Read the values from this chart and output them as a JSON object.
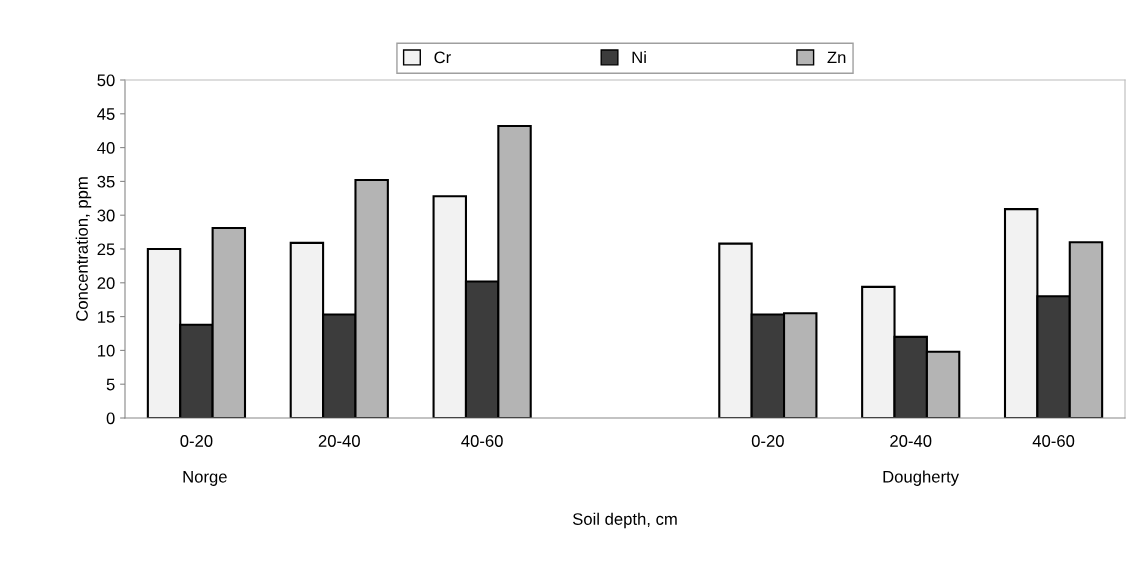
{
  "chart_data": {
    "type": "bar",
    "categories": [
      "0-20",
      "20-40",
      "40-60",
      null,
      "0-20",
      "20-40",
      "40-60"
    ],
    "series": [
      {
        "name": "Cr",
        "color": "#f2f2f2",
        "values": [
          25,
          25.9,
          32.8,
          null,
          25.8,
          19.4,
          30.9
        ]
      },
      {
        "name": "Ni",
        "color": "#3c3c3c",
        "values": [
          13.8,
          15.3,
          20.2,
          null,
          15.3,
          12.0,
          18.0
        ]
      },
      {
        "name": "Zn",
        "color": "#b4b4b4",
        "values": [
          28.1,
          35.2,
          43.2,
          null,
          15.5,
          9.8,
          26.0
        ]
      }
    ],
    "ylim": [
      0,
      50
    ],
    "yticks": [
      0,
      5,
      10,
      15,
      20,
      25,
      30,
      35,
      40,
      45,
      50
    ],
    "xlabel": "Soil depth, cm",
    "ylabel": "Concentration, ppm",
    "annotations": [
      "Norge",
      "Dougherty"
    ],
    "legend": "top",
    "grid": false
  }
}
